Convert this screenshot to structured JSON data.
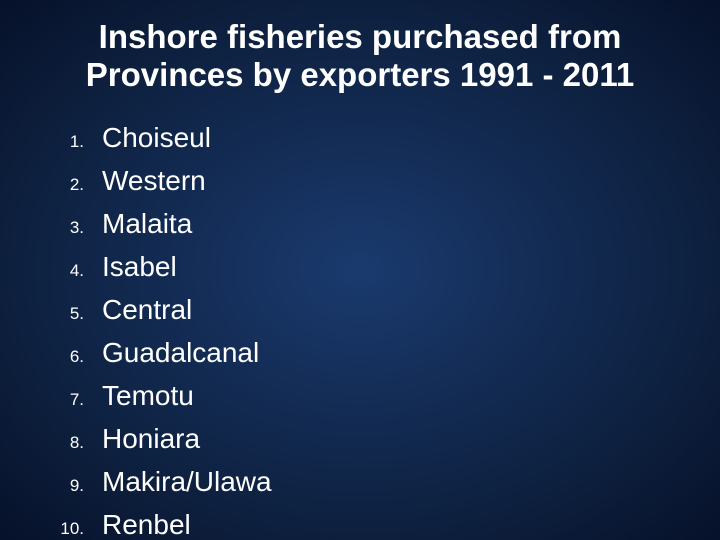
{
  "slide": {
    "title": "Inshore fisheries purchased from Provinces by exporters 1991 - 2011",
    "items": [
      {
        "number": "1.",
        "label": "Choiseul"
      },
      {
        "number": "2.",
        "label": "Western"
      },
      {
        "number": "3.",
        "label": "Malaita"
      },
      {
        "number": "4.",
        "label": "Isabel"
      },
      {
        "number": "5.",
        "label": "Central"
      },
      {
        "number": "6.",
        "label": "Guadalcanal"
      },
      {
        "number": "7.",
        "label": "Temotu"
      },
      {
        "number": "8.",
        "label": "Honiara"
      },
      {
        "number": "9.",
        "label": "Makira/Ulawa"
      },
      {
        "number": "10.",
        "label": "Renbel"
      }
    ],
    "background_gradient": {
      "inner": "#1a3a6e",
      "outer": "#06112a"
    },
    "text_color": "#ffffff",
    "title_fontsize": 33,
    "item_fontsize": 28,
    "number_fontsize": 17
  }
}
